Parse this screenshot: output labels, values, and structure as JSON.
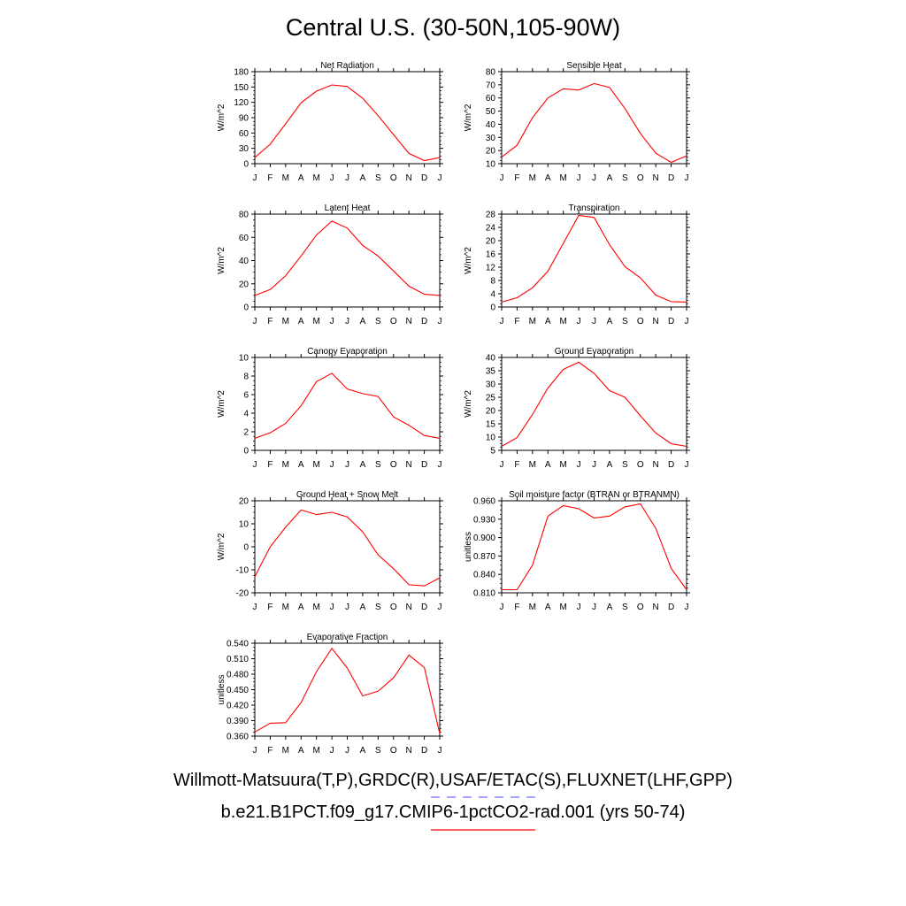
{
  "title": "Central U.S. (30-50N,105-90W)",
  "footer": {
    "obs_line": "Willmott-Matsuura(T,P),GRDC(R),USAF/ETAC(S),FLUXNET(LHF,GPP)",
    "model_line": "b.e21.B1PCT.f09_g17.CMIP6-1pctCO2-rad.001 (yrs 50-74)",
    "obs_color": "#6a6aff",
    "model_color": "#ff0000"
  },
  "chart_data": [
    {
      "type": "line",
      "title": "Net Radiation",
      "ylabel": "W/m^2",
      "x": [
        "J",
        "F",
        "M",
        "A",
        "M",
        "J",
        "J",
        "A",
        "S",
        "O",
        "N",
        "D",
        "J"
      ],
      "ylim": [
        0,
        180
      ],
      "yticks": [
        "0",
        "30",
        "60",
        "90",
        "120",
        "150",
        "180"
      ],
      "series": [
        {
          "values": [
            12,
            38,
            78,
            119,
            142,
            154,
            151,
            128,
            94,
            57,
            20,
            6,
            12
          ],
          "color": "#ff0000"
        }
      ]
    },
    {
      "type": "line",
      "title": "Sensible Heat",
      "ylabel": "W/m^2",
      "x": [
        "J",
        "F",
        "M",
        "A",
        "M",
        "J",
        "J",
        "A",
        "S",
        "O",
        "N",
        "D",
        "J"
      ],
      "ylim": [
        10,
        80
      ],
      "yticks": [
        "10",
        "20",
        "30",
        "40",
        "50",
        "60",
        "70",
        "80"
      ],
      "series": [
        {
          "values": [
            15,
            24,
            45,
            60,
            67,
            66,
            71,
            68,
            52,
            33,
            18,
            11,
            16
          ],
          "color": "#ff0000"
        }
      ]
    },
    {
      "type": "line",
      "title": "Latent Heat",
      "ylabel": "W/m^2",
      "x": [
        "J",
        "F",
        "M",
        "A",
        "M",
        "J",
        "J",
        "A",
        "S",
        "O",
        "N",
        "D",
        "J"
      ],
      "ylim": [
        0,
        80
      ],
      "yticks": [
        "0",
        "20",
        "40",
        "60",
        "80"
      ],
      "series": [
        {
          "values": [
            10,
            15,
            27,
            44,
            62,
            74,
            68,
            53,
            44,
            31,
            18,
            11,
            10
          ],
          "color": "#ff0000"
        }
      ]
    },
    {
      "type": "line",
      "title": "Transpiration",
      "ylabel": "W/m^2",
      "x": [
        "J",
        "F",
        "M",
        "A",
        "M",
        "J",
        "J",
        "A",
        "S",
        "O",
        "N",
        "D",
        "J"
      ],
      "ylim": [
        0,
        28
      ],
      "yticks": [
        "0",
        "4",
        "8",
        "12",
        "16",
        "20",
        "24",
        "28"
      ],
      "series": [
        {
          "values": [
            1.5,
            2.8,
            5.8,
            10.8,
            19.2,
            27.6,
            27.0,
            18.8,
            12.2,
            8.8,
            3.6,
            1.6,
            1.5
          ],
          "color": "#ff0000"
        }
      ]
    },
    {
      "type": "line",
      "title": "Canopy Evaporation",
      "ylabel": "W/m^2",
      "x": [
        "J",
        "F",
        "M",
        "A",
        "M",
        "J",
        "J",
        "A",
        "S",
        "O",
        "N",
        "D",
        "J"
      ],
      "ylim": [
        0,
        10
      ],
      "yticks": [
        "0",
        "2",
        "4",
        "6",
        "8",
        "10"
      ],
      "series": [
        {
          "values": [
            1.3,
            1.9,
            2.9,
            4.8,
            7.4,
            8.3,
            6.6,
            6.1,
            5.8,
            3.6,
            2.7,
            1.6,
            1.3
          ],
          "color": "#ff0000"
        }
      ]
    },
    {
      "type": "line",
      "title": "Ground Evaporation",
      "ylabel": "W/m^2",
      "x": [
        "J",
        "F",
        "M",
        "A",
        "M",
        "J",
        "J",
        "A",
        "S",
        "O",
        "N",
        "D",
        "J"
      ],
      "ylim": [
        5,
        40
      ],
      "yticks": [
        "5",
        "10",
        "15",
        "20",
        "25",
        "30",
        "35",
        "40"
      ],
      "series": [
        {
          "values": [
            6.5,
            9.8,
            18.5,
            28.5,
            35.5,
            38.2,
            34.0,
            27.5,
            25.0,
            18.0,
            11.5,
            7.5,
            6.5
          ],
          "color": "#ff0000"
        }
      ]
    },
    {
      "type": "line",
      "title": "Ground Heat + Snow Melt",
      "ylabel": "W/m^2",
      "x": [
        "J",
        "F",
        "M",
        "A",
        "M",
        "J",
        "J",
        "A",
        "S",
        "O",
        "N",
        "D",
        "J"
      ],
      "ylim": [
        -20,
        20
      ],
      "yticks": [
        "-20",
        "-10",
        "0",
        "10",
        "20"
      ],
      "series": [
        {
          "values": [
            -13,
            0,
            8.5,
            16,
            14,
            15,
            13,
            6.5,
            -3.5,
            -9.5,
            -16.5,
            -17,
            -13.5
          ],
          "color": "#ff0000"
        }
      ]
    },
    {
      "type": "line",
      "title": "Soil moisture factor (BTRAN or BTRANMN)",
      "ylabel": "unitless",
      "x": [
        "J",
        "F",
        "M",
        "A",
        "M",
        "J",
        "J",
        "A",
        "S",
        "O",
        "N",
        "D",
        "J"
      ],
      "ylim": [
        0.81,
        0.96
      ],
      "yticks": [
        "0.810",
        "0.840",
        "0.870",
        "0.900",
        "0.930",
        "0.960"
      ],
      "series": [
        {
          "values": [
            0.815,
            0.815,
            0.855,
            0.935,
            0.952,
            0.947,
            0.932,
            0.935,
            0.95,
            0.955,
            0.915,
            0.85,
            0.815
          ],
          "color": "#ff0000"
        }
      ]
    },
    {
      "type": "line",
      "title": "Evaporative Fraction",
      "ylabel": "unitless",
      "x": [
        "J",
        "F",
        "M",
        "A",
        "M",
        "J",
        "J",
        "A",
        "S",
        "O",
        "N",
        "D",
        "J"
      ],
      "ylim": [
        0.36,
        0.54
      ],
      "yticks": [
        "0.360",
        "0.390",
        "0.420",
        "0.450",
        "0.480",
        "0.510",
        "0.540"
      ],
      "series": [
        {
          "values": [
            0.368,
            0.385,
            0.386,
            0.425,
            0.485,
            0.53,
            0.492,
            0.438,
            0.447,
            0.473,
            0.517,
            0.493,
            0.365
          ],
          "color": "#ff0000"
        }
      ]
    }
  ]
}
